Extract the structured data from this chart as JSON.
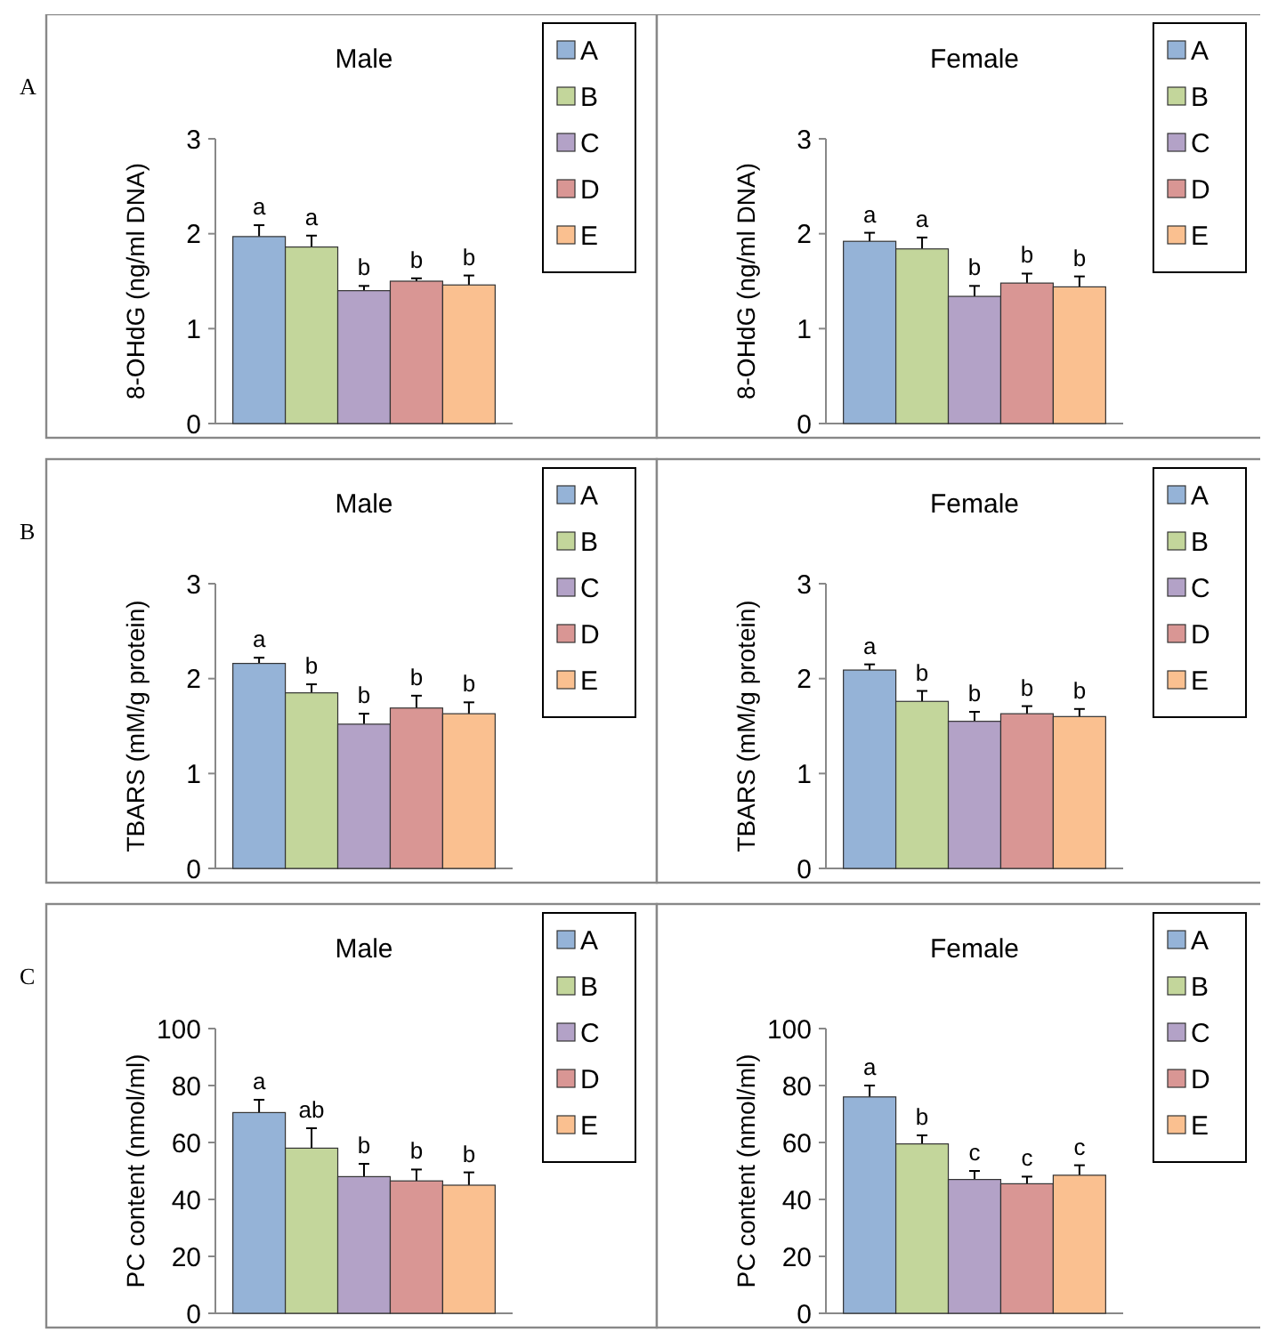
{
  "chart_data": [
    {
      "type": "bar",
      "title": "Male",
      "ylabel": "8-OHdG (ng/ml DNA)",
      "annotations": [
        "A"
      ],
      "categories": [
        null
      ],
      "ylim": [
        0,
        3
      ],
      "yticks": [
        0,
        1,
        2,
        3
      ],
      "grid": false,
      "legend": "top right",
      "series": [
        {
          "name": "A",
          "color": "#95b3d7",
          "values": [
            1.97
          ],
          "errors": [
            0.12
          ],
          "value_labels": [
            "a"
          ]
        },
        {
          "name": "B",
          "color": "#c3d69b",
          "values": [
            1.86
          ],
          "errors": [
            0.12
          ],
          "value_labels": [
            "a"
          ]
        },
        {
          "name": "C",
          "color": "#b3a2c7",
          "values": [
            1.4
          ],
          "errors": [
            0.05
          ],
          "value_labels": [
            "b"
          ]
        },
        {
          "name": "D",
          "color": "#d99694",
          "values": [
            1.5
          ],
          "errors": [
            0.03
          ],
          "value_labels": [
            "b"
          ]
        },
        {
          "name": "E",
          "color": "#fac090",
          "values": [
            1.46
          ],
          "errors": [
            0.1
          ],
          "value_labels": [
            "b"
          ]
        }
      ]
    },
    {
      "type": "bar",
      "title": "Female",
      "ylabel": "8-OHdG (ng/ml DNA)",
      "categories": [
        null
      ],
      "ylim": [
        0,
        3
      ],
      "yticks": [
        0,
        1,
        2,
        3
      ],
      "grid": false,
      "legend": "top right",
      "series": [
        {
          "name": "A",
          "color": "#95b3d7",
          "values": [
            1.92
          ],
          "errors": [
            0.09
          ],
          "value_labels": [
            "a"
          ]
        },
        {
          "name": "B",
          "color": "#c3d69b",
          "values": [
            1.84
          ],
          "errors": [
            0.12
          ],
          "value_labels": [
            "a"
          ]
        },
        {
          "name": "C",
          "color": "#b3a2c7",
          "values": [
            1.34
          ],
          "errors": [
            0.11
          ],
          "value_labels": [
            "b"
          ]
        },
        {
          "name": "D",
          "color": "#d99694",
          "values": [
            1.48
          ],
          "errors": [
            0.1
          ],
          "value_labels": [
            "b"
          ]
        },
        {
          "name": "E",
          "color": "#fac090",
          "values": [
            1.44
          ],
          "errors": [
            0.11
          ],
          "value_labels": [
            "b"
          ]
        }
      ]
    },
    {
      "type": "bar",
      "title": "Male",
      "ylabel": "TBARS (mM/g protein)",
      "annotations": [
        "B"
      ],
      "categories": [
        null
      ],
      "ylim": [
        0,
        3
      ],
      "yticks": [
        0,
        1,
        2,
        3
      ],
      "grid": false,
      "legend": "top right",
      "series": [
        {
          "name": "A",
          "color": "#95b3d7",
          "values": [
            2.16
          ],
          "errors": [
            0.06
          ],
          "value_labels": [
            "a"
          ]
        },
        {
          "name": "B",
          "color": "#c3d69b",
          "values": [
            1.85
          ],
          "errors": [
            0.09
          ],
          "value_labels": [
            "b"
          ]
        },
        {
          "name": "C",
          "color": "#b3a2c7",
          "values": [
            1.52
          ],
          "errors": [
            0.11
          ],
          "value_labels": [
            "b"
          ]
        },
        {
          "name": "D",
          "color": "#d99694",
          "values": [
            1.69
          ],
          "errors": [
            0.13
          ],
          "value_labels": [
            "b"
          ]
        },
        {
          "name": "E",
          "color": "#fac090",
          "values": [
            1.63
          ],
          "errors": [
            0.12
          ],
          "value_labels": [
            "b"
          ]
        }
      ]
    },
    {
      "type": "bar",
      "title": "Female",
      "ylabel": "TBARS (mM/g protein)",
      "categories": [
        null
      ],
      "ylim": [
        0,
        3
      ],
      "yticks": [
        0,
        1,
        2,
        3
      ],
      "grid": false,
      "legend": "top right",
      "series": [
        {
          "name": "A",
          "color": "#95b3d7",
          "values": [
            2.09
          ],
          "errors": [
            0.06
          ],
          "value_labels": [
            "a"
          ]
        },
        {
          "name": "B",
          "color": "#c3d69b",
          "values": [
            1.76
          ],
          "errors": [
            0.11
          ],
          "value_labels": [
            "b"
          ]
        },
        {
          "name": "C",
          "color": "#b3a2c7",
          "values": [
            1.55
          ],
          "errors": [
            0.1
          ],
          "value_labels": [
            "b"
          ]
        },
        {
          "name": "D",
          "color": "#d99694",
          "values": [
            1.63
          ],
          "errors": [
            0.08
          ],
          "value_labels": [
            "b"
          ]
        },
        {
          "name": "E",
          "color": "#fac090",
          "values": [
            1.6
          ],
          "errors": [
            0.08
          ],
          "value_labels": [
            "b"
          ]
        }
      ]
    },
    {
      "type": "bar",
      "title": "Male",
      "ylabel": "PC content (nmol/ml)",
      "annotations": [
        "C"
      ],
      "categories": [
        null
      ],
      "ylim": [
        0,
        100
      ],
      "yticks": [
        0,
        20,
        40,
        60,
        80,
        100
      ],
      "grid": false,
      "legend": "top right",
      "series": [
        {
          "name": "A",
          "color": "#95b3d7",
          "values": [
            70.5
          ],
          "errors": [
            4.5
          ],
          "value_labels": [
            "a"
          ]
        },
        {
          "name": "B",
          "color": "#c3d69b",
          "values": [
            58
          ],
          "errors": [
            7
          ],
          "value_labels": [
            "ab"
          ]
        },
        {
          "name": "C",
          "color": "#b3a2c7",
          "values": [
            48
          ],
          "errors": [
            4.5
          ],
          "value_labels": [
            "b"
          ]
        },
        {
          "name": "D",
          "color": "#d99694",
          "values": [
            46.5
          ],
          "errors": [
            4
          ],
          "value_labels": [
            "b"
          ]
        },
        {
          "name": "E",
          "color": "#fac090",
          "values": [
            45
          ],
          "errors": [
            4.5
          ],
          "value_labels": [
            "b"
          ]
        }
      ]
    },
    {
      "type": "bar",
      "title": "Female",
      "ylabel": "PC content (nmol/ml)",
      "categories": [
        null
      ],
      "ylim": [
        0,
        100
      ],
      "yticks": [
        0,
        20,
        40,
        60,
        80,
        100
      ],
      "grid": false,
      "legend": "top right",
      "series": [
        {
          "name": "A",
          "color": "#95b3d7",
          "values": [
            76
          ],
          "errors": [
            4
          ],
          "value_labels": [
            "a"
          ]
        },
        {
          "name": "B",
          "color": "#c3d69b",
          "values": [
            59.5
          ],
          "errors": [
            3
          ],
          "value_labels": [
            "b"
          ]
        },
        {
          "name": "C",
          "color": "#b3a2c7",
          "values": [
            47
          ],
          "errors": [
            3
          ],
          "value_labels": [
            "c"
          ]
        },
        {
          "name": "D",
          "color": "#d99694",
          "values": [
            45.5
          ],
          "errors": [
            2.5
          ],
          "value_labels": [
            "c"
          ]
        },
        {
          "name": "E",
          "color": "#fac090",
          "values": [
            48.5
          ],
          "errors": [
            3.5
          ],
          "value_labels": [
            "c"
          ]
        }
      ]
    }
  ]
}
